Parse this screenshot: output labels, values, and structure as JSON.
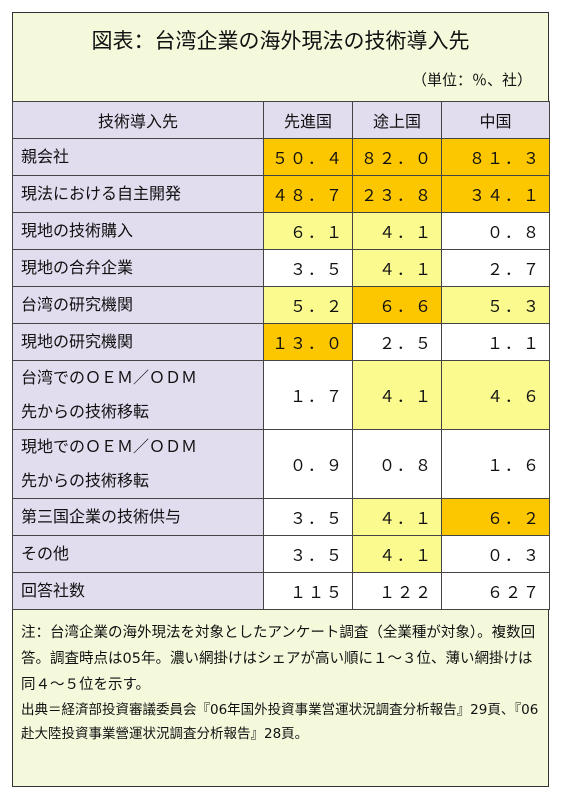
{
  "header": {
    "title": "図表：台湾企業の海外現法の技術導入先",
    "unit": "（単位：％、社）"
  },
  "table": {
    "columns": [
      "技術導入先",
      "先進国",
      "途上国",
      "中国"
    ],
    "rows": [
      {
        "label": [
          "親会社"
        ],
        "cells": [
          {
            "text": "５０．４",
            "shade": "dark"
          },
          {
            "text": "８２．０",
            "shade": "dark"
          },
          {
            "text": "８１．３",
            "shade": "dark"
          }
        ]
      },
      {
        "label": [
          "現法における自主開発"
        ],
        "cells": [
          {
            "text": "４８．７",
            "shade": "dark"
          },
          {
            "text": "２３．８",
            "shade": "dark"
          },
          {
            "text": "３４．１",
            "shade": "dark"
          }
        ]
      },
      {
        "label": [
          "現地の技術購入"
        ],
        "cells": [
          {
            "text": "６．１",
            "shade": "light"
          },
          {
            "text": "４．１",
            "shade": "light"
          },
          {
            "text": "０．８",
            "shade": "none"
          }
        ]
      },
      {
        "label": [
          "現地の合弁企業"
        ],
        "cells": [
          {
            "text": "３．５",
            "shade": "none"
          },
          {
            "text": "４．１",
            "shade": "light"
          },
          {
            "text": "２．７",
            "shade": "none"
          }
        ]
      },
      {
        "label": [
          "台湾の研究機関"
        ],
        "cells": [
          {
            "text": "５．２",
            "shade": "light"
          },
          {
            "text": "６．６",
            "shade": "dark"
          },
          {
            "text": "５．３",
            "shade": "light"
          }
        ]
      },
      {
        "label": [
          "現地の研究機関"
        ],
        "cells": [
          {
            "text": "１３．０",
            "shade": "dark"
          },
          {
            "text": "２．５",
            "shade": "none"
          },
          {
            "text": "１．１",
            "shade": "none"
          }
        ]
      },
      {
        "label": [
          "台湾でのＯＥＭ／ＯＤＭ",
          "先からの技術移転"
        ],
        "cells": [
          {
            "text": "１．７",
            "shade": "none"
          },
          {
            "text": "４．１",
            "shade": "light"
          },
          {
            "text": "４．６",
            "shade": "light"
          }
        ]
      },
      {
        "label": [
          "現地でのＯＥＭ／ＯＤＭ",
          "先からの技術移転"
        ],
        "cells": [
          {
            "text": "０．９",
            "shade": "none"
          },
          {
            "text": "０．８",
            "shade": "none"
          },
          {
            "text": "１．６",
            "shade": "none"
          }
        ]
      },
      {
        "label": [
          "第三国企業の技術供与"
        ],
        "cells": [
          {
            "text": "３．５",
            "shade": "none"
          },
          {
            "text": "４．１",
            "shade": "light"
          },
          {
            "text": "６．２",
            "shade": "dark"
          }
        ]
      },
      {
        "label": [
          "その他"
        ],
        "cells": [
          {
            "text": "３．５",
            "shade": "none"
          },
          {
            "text": "４．１",
            "shade": "light"
          },
          {
            "text": "０．３",
            "shade": "none"
          }
        ]
      },
      {
        "label": [
          "回答社数"
        ],
        "cells": [
          {
            "text": "１１５",
            "shade": "none"
          },
          {
            "text": "１２２",
            "shade": "none"
          },
          {
            "text": "６２７",
            "shade": "none"
          }
        ]
      }
    ]
  },
  "notes": {
    "note": "注：台湾企業の海外現法を対象としたアンケート調査（全業種が対象）。複数回答。調査時点は05年。濃い網掛けはシェアが高い順に１～３位、薄い網掛けは同４～５位を示す。",
    "source": "出典＝経済部投資審議委員会『06年国外投資事業営運状況調査分析報告』29頁、『06赴大陸投資事業營運状況調査分析報告』28頁。"
  }
}
